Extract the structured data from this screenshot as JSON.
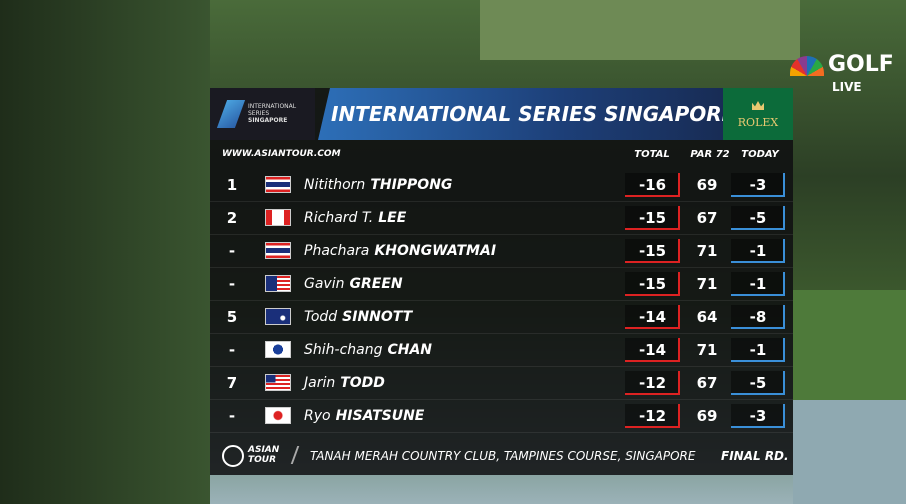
{
  "broadcast": {
    "network": "GOLF",
    "status": "LIVE"
  },
  "header": {
    "logo_line1": "INTERNATIONAL",
    "logo_line2": "SERIES",
    "logo_line3": "SINGAPORE",
    "title": "INTERNATIONAL SERIES SINGAPORE",
    "sponsor": "ROLEX"
  },
  "subheader": {
    "website": "WWW.ASIANTOUR.COM",
    "columns": [
      "TOTAL",
      "PAR 72",
      "TODAY"
    ]
  },
  "leaderboard": {
    "rows": [
      {
        "pos": "1",
        "first": "Nitithorn",
        "last": "THIPPONG",
        "total": -16,
        "round": 69,
        "today": -3
      },
      {
        "pos": "2",
        "first": "Richard T.",
        "last": "LEE",
        "total": -15,
        "round": 67,
        "today": -5
      },
      {
        "pos": "-",
        "first": "Phachara",
        "last": "KHONGWATMAI",
        "total": -15,
        "round": 71,
        "today": -1
      },
      {
        "pos": "-",
        "first": "Gavin",
        "last": "GREEN",
        "total": -15,
        "round": 71,
        "today": -1
      },
      {
        "pos": "5",
        "first": "Todd",
        "last": "SINNOTT",
        "total": -14,
        "round": 64,
        "today": -8
      },
      {
        "pos": "-",
        "first": "Shih-chang",
        "last": "CHAN",
        "total": -14,
        "round": 71,
        "today": -1
      },
      {
        "pos": "7",
        "first": "Jarin",
        "last": "TODD",
        "total": -12,
        "round": 67,
        "today": -5
      },
      {
        "pos": "-",
        "first": "Ryo",
        "last": "HISATSUNE",
        "total": -12,
        "round": 69,
        "today": -3
      }
    ]
  },
  "footer": {
    "tour_line1": "ASIAN",
    "tour_line2": "TOUR",
    "venue": "TANAH MERAH COUNTRY CLUB, TAMPINES COURSE, SINGAPORE",
    "round": "FINAL RD."
  }
}
